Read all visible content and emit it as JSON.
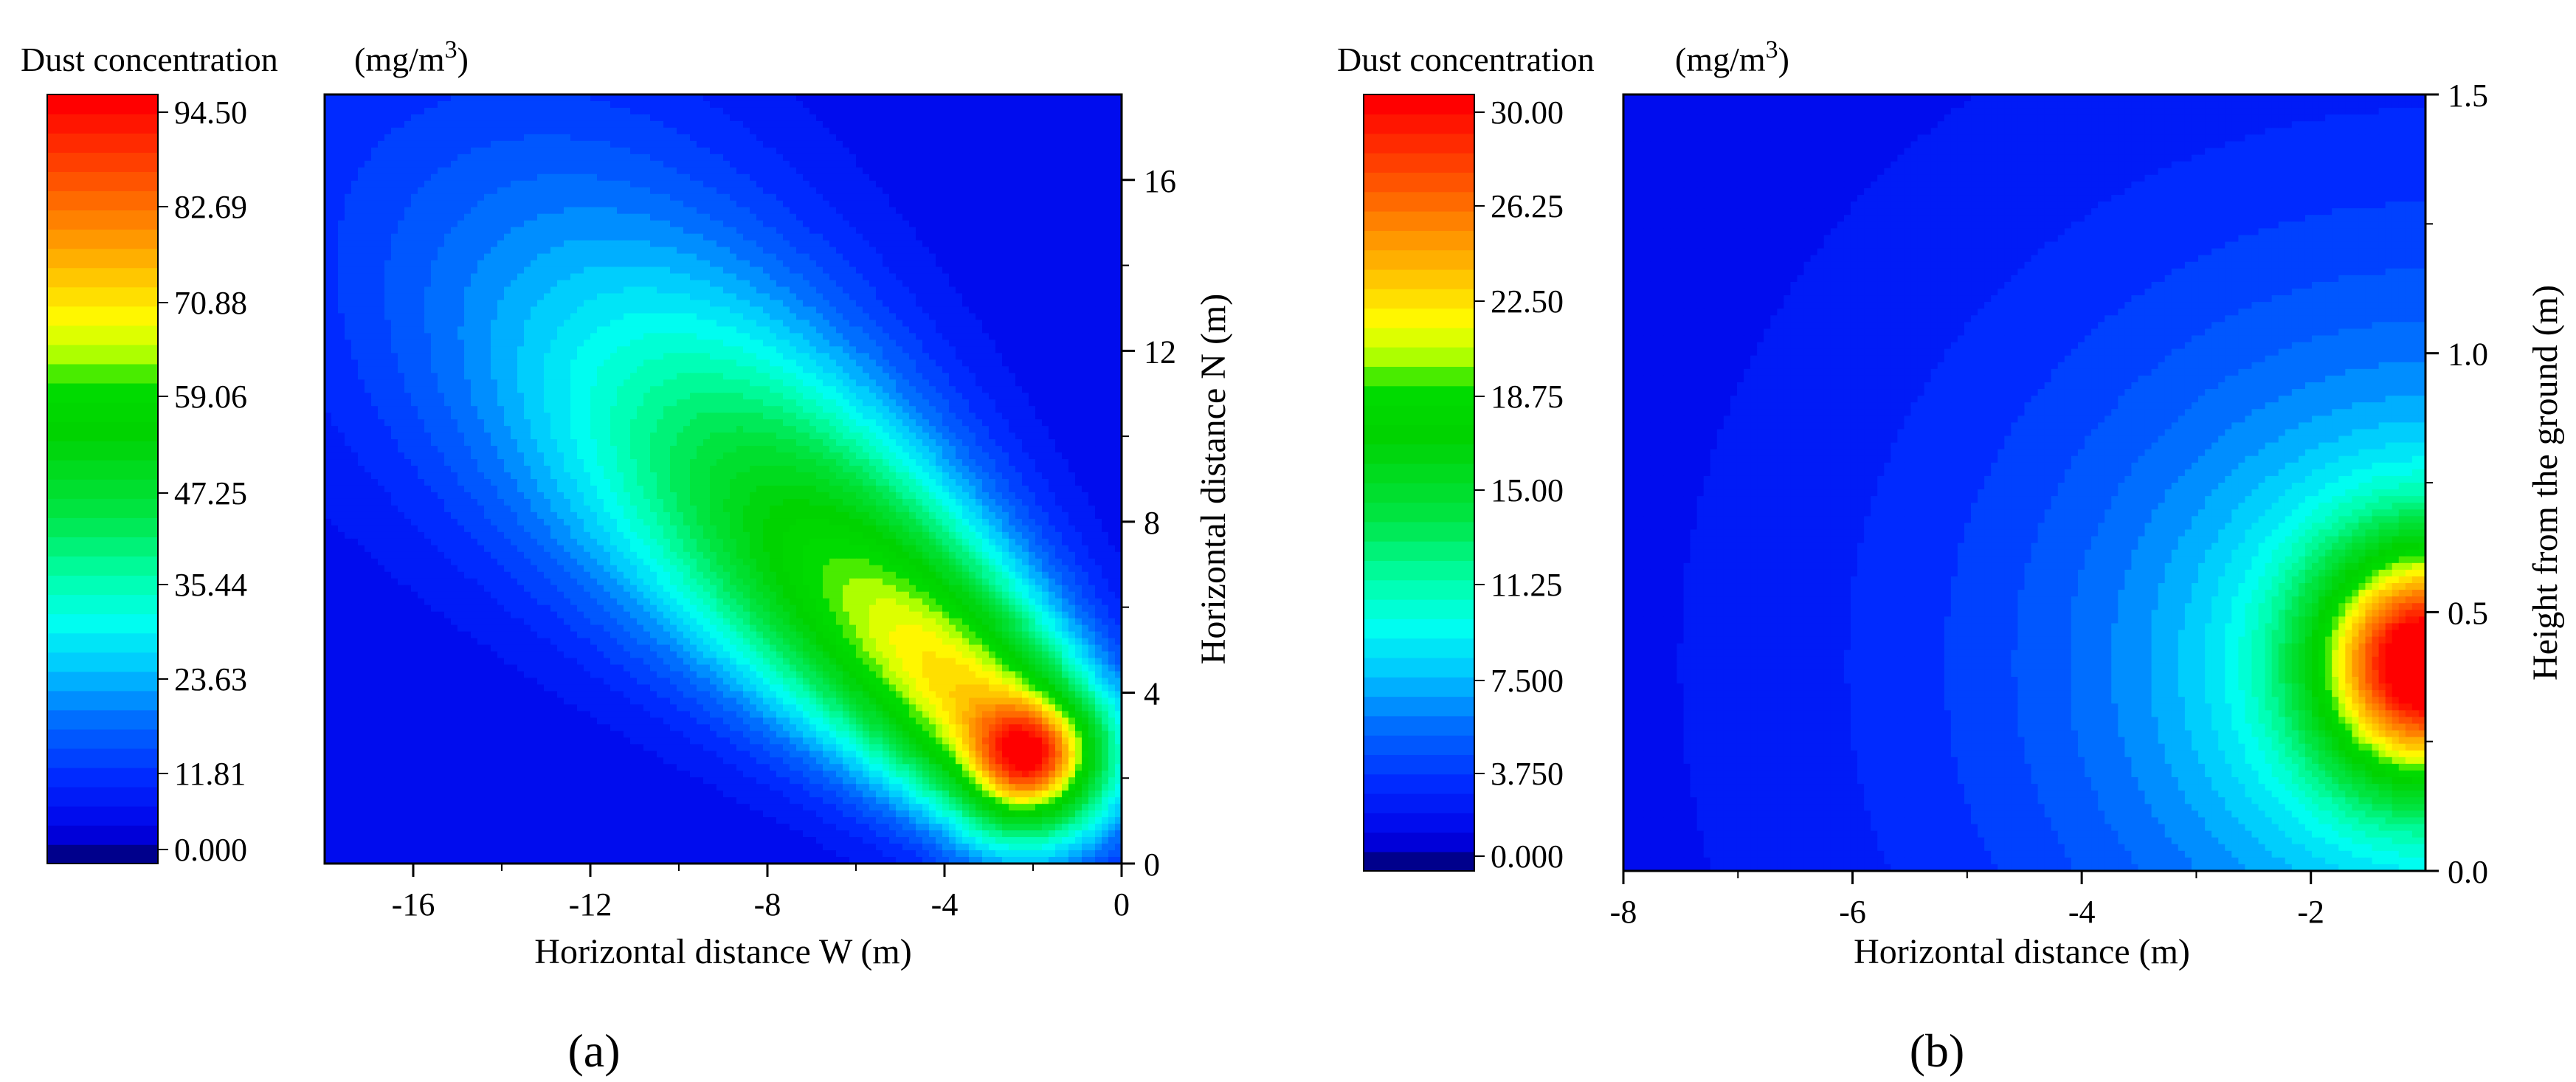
{
  "chart_data": [
    {
      "type": "heatmap",
      "panel_label": "(a)",
      "colorbar_title": "Dust concentration",
      "colorbar_unit": "(mg/m",
      "colorbar_unit_sup": "3",
      "colorbar_unit_close": ")",
      "colorbar_ticks": [
        "94.50",
        "82.69",
        "70.88",
        "59.06",
        "47.25",
        "35.44",
        "23.63",
        "11.81",
        "0.000"
      ],
      "colorbar_range": [
        0,
        94.5
      ],
      "xlabel": "Horizontal distance W (m)",
      "ylabel": "Horizontal distance N (m)",
      "xlim": [
        -18,
        0
      ],
      "ylim": [
        0,
        18
      ],
      "xticks": [
        -16,
        -12,
        -8,
        -4,
        0
      ],
      "xtick_labels": [
        "-16",
        "-12",
        "-8",
        "-4",
        "0"
      ],
      "yticks": [
        0,
        4,
        8,
        12,
        16
      ],
      "ytick_labels": [
        "0",
        "4",
        "8",
        "12",
        "16"
      ],
      "peak": {
        "x": -2.2,
        "y": 2.6,
        "value": 94.5
      },
      "field_description": "elongated plume from (-2.2, 2.6) along NW direction"
    },
    {
      "type": "heatmap",
      "panel_label": "(b)",
      "colorbar_title": "Dust concentration",
      "colorbar_unit": "(mg/m",
      "colorbar_unit_sup": "3",
      "colorbar_unit_close": ")",
      "colorbar_ticks": [
        "30.00",
        "26.25",
        "22.50",
        "18.75",
        "15.00",
        "11.25",
        "7.500",
        "3.750",
        "0.000"
      ],
      "colorbar_range": [
        0,
        30
      ],
      "xlabel": "Horizontal distance (m)",
      "ylabel": "Height from the ground (m)",
      "xlim": [
        -8,
        -1
      ],
      "ylim": [
        0,
        1.5
      ],
      "xticks": [
        -8,
        -6,
        -4,
        -2
      ],
      "xtick_labels": [
        "-8",
        "-6",
        "-4",
        "-2"
      ],
      "yticks": [
        0,
        0.5,
        1.0,
        1.5
      ],
      "ytick_labels": [
        "0.0",
        "0.5",
        "1.0",
        "1.5"
      ],
      "peak": {
        "x": -1.0,
        "y": 0.4,
        "value": 30
      }
    }
  ]
}
